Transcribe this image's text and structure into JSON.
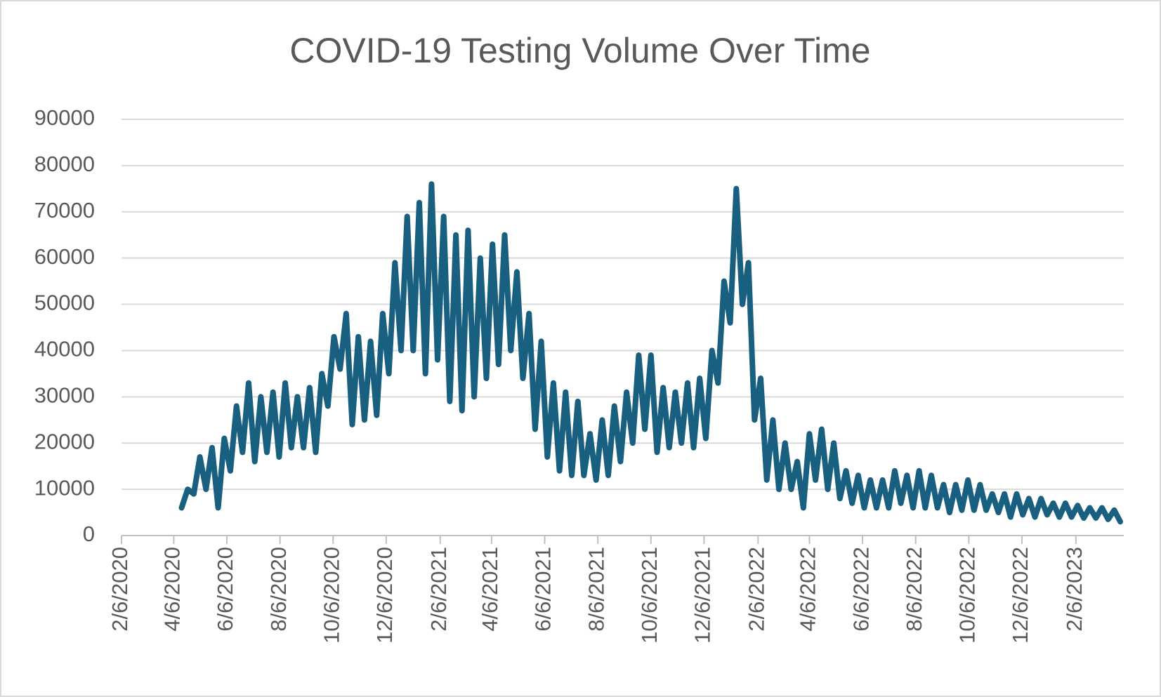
{
  "chart_data": {
    "type": "line",
    "title": "COVID-19 Testing Volume Over Time",
    "x": [
      "4/15/2020",
      "4/22/2020",
      "4/29/2020",
      "5/6/2020",
      "5/13/2020",
      "5/20/2020",
      "5/27/2020",
      "6/3/2020",
      "6/10/2020",
      "6/17/2020",
      "6/24/2020",
      "7/1/2020",
      "7/8/2020",
      "7/15/2020",
      "7/22/2020",
      "7/29/2020",
      "8/5/2020",
      "8/12/2020",
      "8/19/2020",
      "8/26/2020",
      "9/2/2020",
      "9/9/2020",
      "9/16/2020",
      "9/23/2020",
      "9/30/2020",
      "10/7/2020",
      "10/14/2020",
      "10/21/2020",
      "10/28/2020",
      "11/4/2020",
      "11/11/2020",
      "11/18/2020",
      "11/25/2020",
      "12/2/2020",
      "12/9/2020",
      "12/16/2020",
      "12/23/2020",
      "12/30/2020",
      "1/6/2021",
      "1/13/2021",
      "1/20/2021",
      "1/27/2021",
      "2/3/2021",
      "2/10/2021",
      "2/17/2021",
      "2/24/2021",
      "3/3/2021",
      "3/10/2021",
      "3/17/2021",
      "3/24/2021",
      "3/31/2021",
      "4/7/2021",
      "4/14/2021",
      "4/21/2021",
      "4/28/2021",
      "5/5/2021",
      "5/12/2021",
      "5/19/2021",
      "5/26/2021",
      "6/2/2021",
      "6/9/2021",
      "6/16/2021",
      "6/23/2021",
      "6/30/2021",
      "7/7/2021",
      "7/14/2021",
      "7/21/2021",
      "7/28/2021",
      "8/4/2021",
      "8/11/2021",
      "8/18/2021",
      "8/25/2021",
      "9/1/2021",
      "9/8/2021",
      "9/15/2021",
      "9/22/2021",
      "9/29/2021",
      "10/6/2021",
      "10/13/2021",
      "10/20/2021",
      "10/27/2021",
      "11/3/2021",
      "11/10/2021",
      "11/17/2021",
      "11/24/2021",
      "12/1/2021",
      "12/8/2021",
      "12/15/2021",
      "12/22/2021",
      "12/29/2021",
      "1/5/2022",
      "1/12/2022",
      "1/19/2022",
      "1/26/2022",
      "2/2/2022",
      "2/9/2022",
      "2/16/2022",
      "2/23/2022",
      "3/2/2022",
      "3/9/2022",
      "3/16/2022",
      "3/23/2022",
      "3/30/2022",
      "4/6/2022",
      "4/13/2022",
      "4/20/2022",
      "4/27/2022",
      "5/4/2022",
      "5/11/2022",
      "5/18/2022",
      "5/25/2022",
      "6/1/2022",
      "6/8/2022",
      "6/15/2022",
      "6/22/2022",
      "6/29/2022",
      "7/6/2022",
      "7/13/2022",
      "7/20/2022",
      "7/27/2022",
      "8/3/2022",
      "8/10/2022",
      "8/17/2022",
      "8/24/2022",
      "8/31/2022",
      "9/7/2022",
      "9/14/2022",
      "9/21/2022",
      "9/28/2022",
      "10/5/2022",
      "10/12/2022",
      "10/19/2022",
      "10/26/2022",
      "11/2/2022",
      "11/9/2022",
      "11/16/2022",
      "11/23/2022",
      "11/30/2022",
      "12/7/2022",
      "12/14/2022",
      "12/21/2022",
      "12/28/2022",
      "1/4/2023",
      "1/11/2023",
      "1/18/2023",
      "1/25/2023",
      "2/1/2023",
      "2/8/2023",
      "2/15/2023",
      "2/22/2023",
      "3/1/2023",
      "3/8/2023",
      "3/15/2023",
      "3/22/2023",
      "3/29/2023"
    ],
    "values": [
      6000,
      10000,
      9000,
      17000,
      10000,
      19000,
      6000,
      21000,
      14000,
      28000,
      18000,
      33000,
      16000,
      30000,
      18000,
      31000,
      17000,
      33000,
      19000,
      30000,
      19000,
      32000,
      18000,
      35000,
      28000,
      43000,
      36000,
      48000,
      24000,
      43000,
      25000,
      42000,
      26000,
      48000,
      35000,
      59000,
      40000,
      69000,
      40000,
      72000,
      35000,
      76000,
      38000,
      69000,
      29000,
      65000,
      27000,
      66000,
      30000,
      60000,
      34000,
      63000,
      37000,
      65000,
      40000,
      57000,
      34000,
      48000,
      23000,
      42000,
      17000,
      33000,
      14000,
      31000,
      13000,
      29000,
      13000,
      22000,
      12000,
      25000,
      13000,
      28000,
      16000,
      31000,
      20000,
      39000,
      23000,
      39000,
      18000,
      32000,
      19000,
      31000,
      20000,
      33000,
      19000,
      34000,
      21000,
      40000,
      33000,
      55000,
      46000,
      75000,
      50000,
      59000,
      25000,
      34000,
      12000,
      25000,
      10000,
      20000,
      10000,
      16000,
      6000,
      22000,
      12000,
      23000,
      10000,
      20000,
      8000,
      14000,
      7000,
      13000,
      6000,
      12000,
      6000,
      12000,
      6000,
      14000,
      7000,
      13000,
      6000,
      14000,
      6000,
      13000,
      6000,
      11000,
      5000,
      11000,
      5500,
      12000,
      5500,
      11000,
      5500,
      9000,
      5000,
      9000,
      4000,
      9000,
      4500,
      8000,
      4000,
      8000,
      4500,
      7000,
      4000,
      7000,
      4000,
      6500,
      3800,
      6000,
      3800,
      6000,
      3500,
      5500,
      3000
    ],
    "color": "#195f80",
    "xlim": [
      "2/6/2020",
      "4/2/2023"
    ],
    "xticks": [
      "2/6/2020",
      "4/6/2020",
      "6/6/2020",
      "8/6/2020",
      "10/6/2020",
      "12/6/2020",
      "2/6/2021",
      "4/6/2021",
      "6/6/2021",
      "8/6/2021",
      "10/6/2021",
      "12/6/2021",
      "2/6/2022",
      "4/6/2022",
      "6/6/2022",
      "8/6/2022",
      "10/6/2022",
      "12/6/2022",
      "2/6/2023"
    ],
    "ylim": [
      0,
      90000
    ],
    "yticks": [
      0,
      10000,
      20000,
      30000,
      40000,
      50000,
      60000,
      70000,
      80000,
      90000
    ],
    "grid": true
  }
}
